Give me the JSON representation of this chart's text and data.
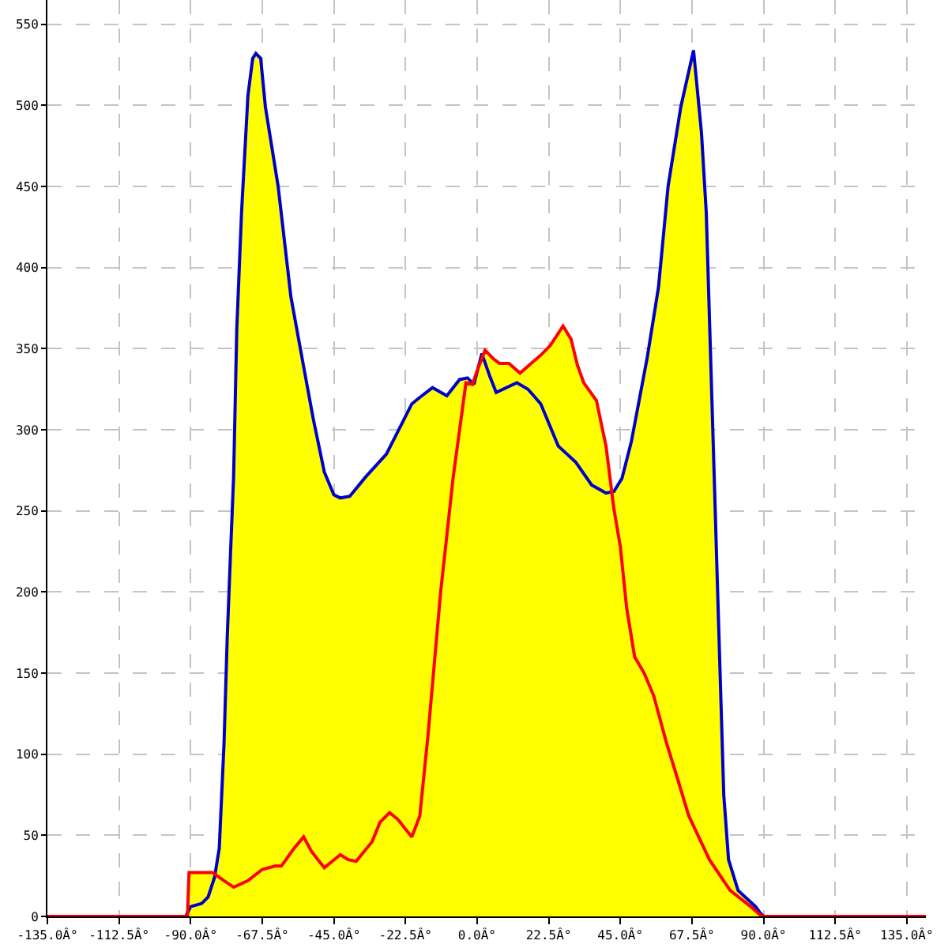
{
  "chart_data": {
    "type": "area",
    "xlim": [
      -135,
      141
    ],
    "ylim": [
      0,
      565
    ],
    "xticks": [
      {
        "value": -135,
        "label": "-135.0Â°"
      },
      {
        "value": -112.5,
        "label": "-112.5Â°"
      },
      {
        "value": -90,
        "label": "-90.0Â°"
      },
      {
        "value": -67.5,
        "label": "-67.5Â°"
      },
      {
        "value": -45,
        "label": "-45.0Â°"
      },
      {
        "value": -22.5,
        "label": "-22.5Â°"
      },
      {
        "value": 0,
        "label": "0.0Â°"
      },
      {
        "value": 22.5,
        "label": "22.5Â°"
      },
      {
        "value": 45,
        "label": "45.0Â°"
      },
      {
        "value": 67.5,
        "label": "67.5Â°"
      },
      {
        "value": 90,
        "label": "90.0Â°"
      },
      {
        "value": 112.5,
        "label": "112.5Â°"
      },
      {
        "value": 135,
        "label": "135.0Â°"
      }
    ],
    "yticks": [
      0,
      50,
      100,
      150,
      200,
      250,
      300,
      350,
      400,
      450,
      500,
      550
    ],
    "grid": true,
    "series": [
      {
        "color": "#ffff00",
        "x": [
          -91,
          -90.5,
          -83,
          -82.3,
          -81,
          -79.5,
          -78.5,
          -77.5,
          -76.5,
          -75.5,
          -74,
          -72,
          -70.5,
          -69.5,
          -68,
          -66.5,
          -62.5,
          -58.5,
          -54.5,
          -51.5,
          -48,
          -45,
          -43,
          -40,
          -35,
          -28.5,
          -20.5,
          -18,
          -14,
          -9.5,
          -5.5,
          -3,
          -1.5,
          0.5,
          1.5,
          2.5,
          5,
          7,
          10,
          13.5,
          17,
          20,
          23,
          27,
          29.5,
          31.5,
          33.5,
          37.5,
          40.5,
          42.3,
          43,
          45.5,
          48.5,
          53.5,
          57,
          60,
          64,
          68,
          70.5,
          72,
          73,
          74.5,
          75.5,
          76.5,
          77.5,
          79,
          82,
          87.5,
          89,
          90
        ],
        "values": [
          0,
          27,
          27,
          26,
          42,
          107,
          172,
          222,
          271,
          362,
          434,
          506,
          529,
          532,
          529,
          499,
          450,
          382,
          339,
          307,
          274,
          260,
          258,
          259,
          271,
          285,
          316,
          320,
          326,
          321,
          331,
          332,
          329,
          339,
          347,
          349,
          344,
          341,
          341,
          335,
          341,
          346,
          352,
          364,
          356,
          340,
          329,
          318,
          290,
          262,
          262,
          270,
          293,
          345,
          388,
          450,
          499,
          534,
          483,
          434,
          369,
          271,
          205,
          140,
          75,
          35,
          16,
          6,
          2,
          0
        ]
      },
      {
        "type": "line",
        "color": "#0000cc",
        "x": [
          -91.5,
          -90,
          -86.5,
          -84.5,
          -82.5,
          -81,
          -79.5,
          -78.5,
          -77.5,
          -76.5,
          -75.5,
          -74,
          -72,
          -70.5,
          -69.5,
          -68,
          -66.5,
          -62.5,
          -58.5,
          -54.5,
          -51.5,
          -48,
          -45,
          -43,
          -40,
          -35,
          -28.5,
          -20.5,
          -18,
          -14,
          -9.5,
          -5.5,
          -3,
          -1,
          1.5,
          4,
          6,
          12.5,
          16,
          20,
          25.5,
          31,
          36,
          40.5,
          43,
          45.5,
          48.5,
          53.5,
          57,
          60,
          64,
          68,
          70.5,
          72,
          73,
          74.5,
          75.5,
          76.5,
          77.5,
          79,
          82,
          87.5,
          89,
          90
        ],
        "values": [
          0,
          6,
          8,
          12,
          24,
          42,
          107,
          172,
          222,
          271,
          362,
          434,
          506,
          529,
          532,
          529,
          499,
          450,
          382,
          339,
          307,
          274,
          260,
          258,
          259,
          271,
          285,
          316,
          320,
          326,
          321,
          331,
          332,
          328,
          347,
          333,
          323,
          329,
          325,
          316,
          290,
          280,
          266,
          261,
          262,
          270,
          293,
          345,
          388,
          450,
          499,
          534,
          483,
          434,
          369,
          271,
          205,
          140,
          75,
          35,
          16,
          6,
          2,
          0
        ]
      },
      {
        "type": "line",
        "color": "#ff0000",
        "x": [
          -135,
          -91,
          -90.5,
          -83,
          -81,
          -76.5,
          -72,
          -67.5,
          -63.5,
          -61.5,
          -57.5,
          -54.5,
          -52,
          -48,
          -45.5,
          -43,
          -40.5,
          -38,
          -33,
          -30.5,
          -27.5,
          -25,
          -20.5,
          -18,
          -15.5,
          -11.5,
          -7.5,
          -3.5,
          -1.5,
          0.5,
          2.5,
          5,
          7,
          10,
          13.5,
          17,
          20,
          23,
          27,
          29.5,
          31.5,
          33.5,
          37.5,
          40.5,
          43,
          45,
          47,
          49.5,
          52.5,
          55.5,
          59.5,
          62.5,
          66.5,
          73,
          79.5,
          86,
          89.5,
          141
        ],
        "values": [
          0,
          0,
          27,
          27,
          24,
          18,
          22,
          29,
          31,
          31,
          42,
          49,
          40,
          30,
          34,
          38,
          35,
          34,
          46,
          58,
          64,
          60,
          49,
          62,
          110,
          199,
          271,
          329,
          328,
          339,
          349,
          344,
          341,
          341,
          335,
          341,
          346,
          352,
          364,
          356,
          340,
          329,
          318,
          290,
          251,
          228,
          190,
          160,
          150,
          136,
          107,
          88,
          62,
          35,
          16,
          6,
          0,
          0
        ]
      }
    ]
  }
}
